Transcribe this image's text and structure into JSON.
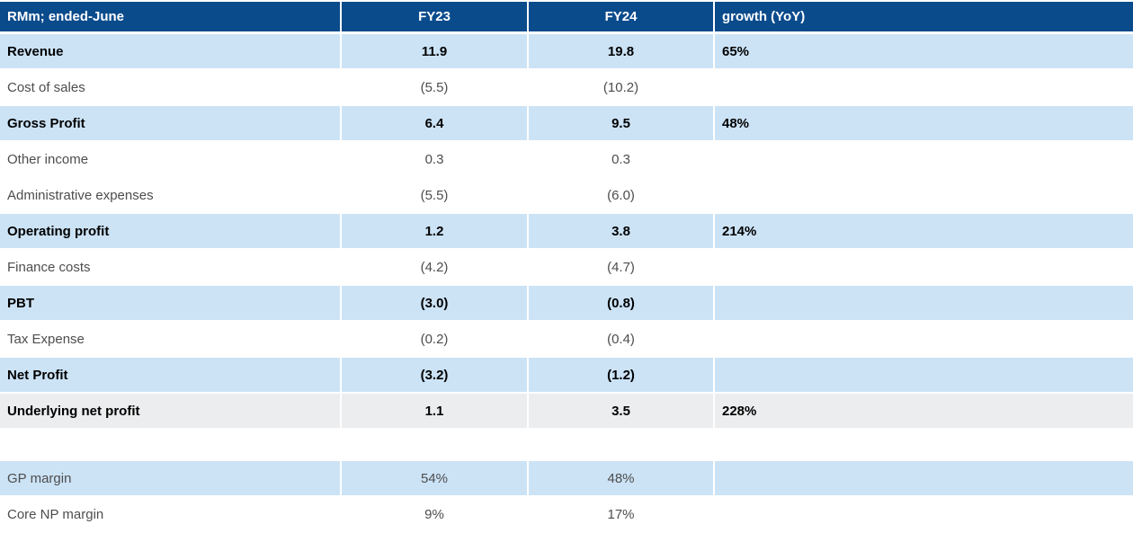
{
  "chart_data": {
    "type": "table",
    "columns": [
      {
        "label": "RMm; ended-June",
        "align": "left"
      },
      {
        "label": "FY23",
        "align": "center"
      },
      {
        "label": "FY24",
        "align": "center"
      },
      {
        "label": "growth (YoY)",
        "align": "left"
      }
    ],
    "rows": [
      {
        "label": "Revenue",
        "fy23": "11.9",
        "fy24": "19.8",
        "growth": "65%",
        "emphasis": "bold-highlight"
      },
      {
        "label": "Cost of sales",
        "fy23": "(5.5)",
        "fy24": "(10.2)",
        "growth": "",
        "emphasis": "plain"
      },
      {
        "label": "Gross Profit",
        "fy23": "6.4",
        "fy24": "9.5",
        "growth": "48%",
        "emphasis": "bold-highlight"
      },
      {
        "label": "Other income",
        "fy23": "0.3",
        "fy24": "0.3",
        "growth": "",
        "emphasis": "plain"
      },
      {
        "label": "Administrative expenses",
        "fy23": "(5.5)",
        "fy24": "(6.0)",
        "growth": "",
        "emphasis": "plain"
      },
      {
        "label": "Operating profit",
        "fy23": "1.2",
        "fy24": "3.8",
        "growth": "214%",
        "emphasis": "bold-highlight"
      },
      {
        "label": "Finance costs",
        "fy23": "(4.2)",
        "fy24": "(4.7)",
        "growth": "",
        "emphasis": "plain"
      },
      {
        "label": "PBT",
        "fy23": "(3.0)",
        "fy24": "(0.8)",
        "growth": "",
        "emphasis": "bold-highlight"
      },
      {
        "label": "Tax Expense",
        "fy23": "(0.2)",
        "fy24": "(0.4)",
        "growth": "",
        "emphasis": "plain"
      },
      {
        "label": "Net Profit",
        "fy23": "(3.2)",
        "fy24": "(1.2)",
        "growth": "",
        "emphasis": "bold-highlight"
      },
      {
        "label": "Underlying net profit",
        "fy23": "1.1",
        "fy24": "3.5",
        "growth": "228%",
        "emphasis": "bold-gray"
      },
      {
        "label": "GP margin",
        "fy23": "54%",
        "fy24": "48%",
        "growth": "",
        "emphasis": "highlight"
      },
      {
        "label": "Core NP margin",
        "fy23": "9%",
        "fy24": "17%",
        "growth": "",
        "emphasis": "plain"
      }
    ]
  },
  "colors": {
    "header_bg": "#0a4b8c",
    "header_text": "#ffffff",
    "highlight_bg": "#cce3f6",
    "gray_bg": "#ebedee",
    "bold_text": "#000000",
    "plain_text": "#4d4d4d"
  }
}
